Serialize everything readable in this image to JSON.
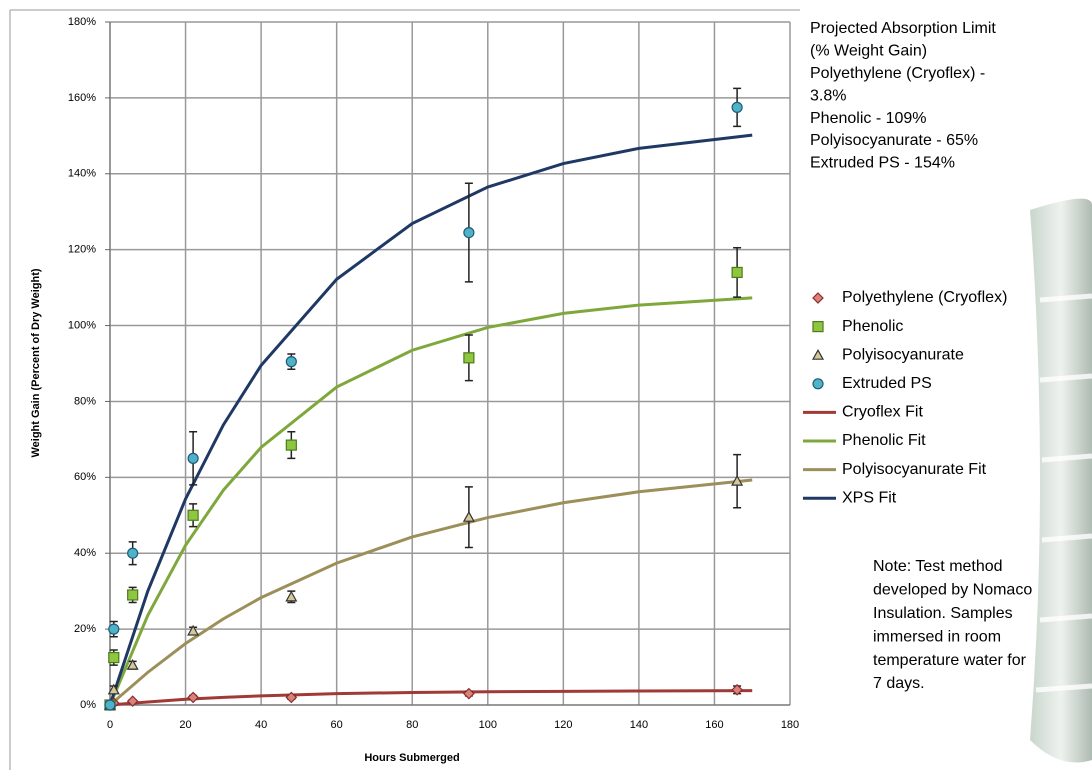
{
  "chart_data": {
    "type": "scatter",
    "xlabel": "Hours Submerged",
    "ylabel": "Weight Gain (Percent of Dry Weight)",
    "xlim": [
      0,
      180
    ],
    "xticks": [
      0,
      20,
      40,
      60,
      80,
      100,
      120,
      140,
      160,
      180
    ],
    "ylim": [
      0,
      180
    ],
    "yticks": [
      {
        "value": 0,
        "label": "0%"
      },
      {
        "value": 20,
        "label": "20%"
      },
      {
        "value": 40,
        "label": "40%"
      },
      {
        "value": 60,
        "label": "60%"
      },
      {
        "value": 80,
        "label": "80%"
      },
      {
        "value": 100,
        "label": "100%"
      },
      {
        "value": 120,
        "label": "120%"
      },
      {
        "value": 140,
        "label": "140%"
      },
      {
        "value": 160,
        "label": "160%"
      },
      {
        "value": 180,
        "label": "180%"
      }
    ],
    "grid": true,
    "legend": "right",
    "series": [
      {
        "name": "Polyethylene (Cryoflex)",
        "mode": "markers",
        "marker": "diamond",
        "color": "#d9827a",
        "edge": "#8b2c2c",
        "x": [
          0,
          1,
          6,
          22,
          48,
          95,
          166
        ],
        "values": [
          0,
          0.5,
          1,
          2,
          2,
          3,
          4
        ],
        "errors": [
          null,
          0.4,
          0.4,
          0.5,
          0.5,
          0.6,
          1
        ]
      },
      {
        "name": "Phenolic",
        "mode": "markers",
        "marker": "square",
        "color": "#8dc63f",
        "edge": "#4e7a1c",
        "x": [
          0,
          1,
          6,
          22,
          48,
          95,
          166
        ],
        "values": [
          0,
          12.5,
          29,
          50,
          68.5,
          91.5,
          114
        ],
        "errors": [
          null,
          2,
          2,
          3,
          3.5,
          6,
          6.5
        ]
      },
      {
        "name": "Polyisocyanurate",
        "mode": "markers",
        "marker": "triangle",
        "color": "#d4c89a",
        "edge": "#333333",
        "x": [
          0,
          1,
          6,
          22,
          48,
          95,
          166
        ],
        "values": [
          0,
          4,
          10.5,
          19.5,
          28.5,
          49.5,
          59
        ],
        "errors": [
          null,
          1,
          1,
          1,
          1.5,
          8,
          7
        ]
      },
      {
        "name": "Extruded PS",
        "mode": "markers",
        "marker": "circle",
        "color": "#4fb3c8",
        "edge": "#1f5a7a",
        "x": [
          0,
          1,
          6,
          22,
          48,
          95,
          166
        ],
        "values": [
          0,
          20,
          40,
          65,
          90.5,
          124.5,
          157.5
        ],
        "errors": [
          null,
          2,
          3,
          7,
          2,
          13,
          5
        ]
      },
      {
        "name": "Cryoflex Fit",
        "mode": "line",
        "color": "#a03a36",
        "x": [
          0,
          10,
          20,
          30,
          40,
          60,
          80,
          100,
          120,
          140,
          170
        ],
        "values": [
          0,
          0.8,
          1.5,
          2,
          2.4,
          3,
          3.3,
          3.5,
          3.6,
          3.7,
          3.8
        ]
      },
      {
        "name": "Phenolic Fit",
        "mode": "line",
        "color": "#7fa83c",
        "x": [
          0,
          10,
          20,
          30,
          40,
          60,
          80,
          100,
          120,
          140,
          170
        ],
        "values": [
          0,
          23.6,
          42.1,
          56.6,
          67.9,
          83.8,
          93.5,
          99.5,
          103.2,
          105.4,
          107.3
        ]
      },
      {
        "name": "Polyisocyanurate Fit",
        "mode": "line",
        "color": "#9c8f5a",
        "x": [
          0,
          10,
          20,
          30,
          40,
          60,
          80,
          100,
          120,
          140,
          170
        ],
        "values": [
          0,
          8.6,
          16.2,
          22.7,
          28.3,
          37.4,
          44.3,
          49.4,
          53.3,
          56.2,
          59.3
        ]
      },
      {
        "name": "XPS Fit",
        "mode": "line",
        "color": "#1f3864",
        "x": [
          0,
          10,
          20,
          30,
          40,
          60,
          80,
          100,
          120,
          140,
          170
        ],
        "values": [
          0,
          30,
          54.3,
          73.8,
          89.5,
          112.2,
          126.9,
          136.5,
          142.7,
          146.7,
          150.2
        ]
      }
    ],
    "annotations": [
      {
        "lines": [
          "Projected Absorption Limit",
          "(% Weight Gain)",
          "Polyethylene (Cryoflex) -",
          "3.8%",
          "Phenolic - 109%",
          "Polyisocyanurate - 65%",
          "Extruded PS - 154%"
        ]
      },
      {
        "lines": [
          "Note: Test method",
          "developed by Nomaco",
          "Insulation. Samples",
          "immersed in room",
          "temperature water for",
          "7 days."
        ]
      }
    ]
  }
}
